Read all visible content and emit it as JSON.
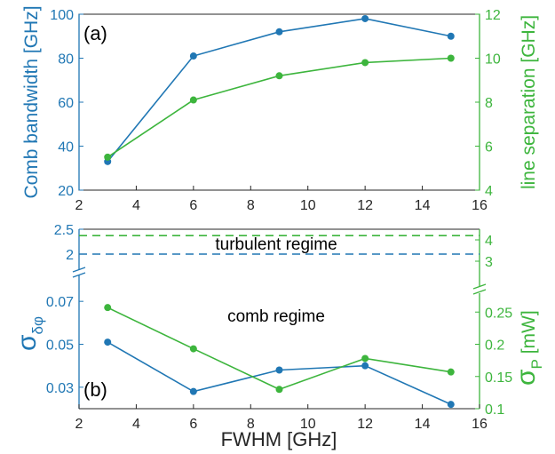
{
  "colors": {
    "blue": "#2077b4",
    "green": "#3db53d",
    "axis": "#262626",
    "blue_dash": "#2a6fbf"
  },
  "chart_data": [
    {
      "type": "line",
      "panel_label": "(a)",
      "x": [
        3,
        6,
        9,
        12,
        15
      ],
      "xlim": [
        2,
        16
      ],
      "xticks": [
        "2",
        "4",
        "6",
        "8",
        "10",
        "12",
        "14",
        "16"
      ],
      "xlabel": "",
      "ylabel_left": "Comb bandwidth [GHz]",
      "ylim_left": [
        20,
        100
      ],
      "yticks_left": [
        "20",
        "40",
        "60",
        "80",
        "100"
      ],
      "ylabel_right": "line separation [GHz]",
      "ylim_right": [
        4,
        12
      ],
      "yticks_right": [
        "4",
        "6",
        "8",
        "10",
        "12"
      ],
      "series": [
        {
          "axis": "left",
          "color": "blue",
          "values": [
            33,
            81,
            92,
            98,
            90
          ]
        },
        {
          "axis": "right",
          "color": "green",
          "values": [
            5.5,
            8.1,
            9.2,
            9.8,
            10.0
          ]
        }
      ]
    },
    {
      "type": "line",
      "panel_label": "(b)",
      "x": [
        3,
        6,
        9,
        12,
        15
      ],
      "xlim": [
        2,
        16
      ],
      "xticks": [
        "2",
        "4",
        "6",
        "8",
        "10",
        "12",
        "14",
        "16"
      ],
      "xlabel": "FWHM [GHz]",
      "ylabel_left": "σδφ",
      "ylabel_left_main": "σ",
      "ylabel_left_sub": "δφ",
      "ylim_left_lower": [
        0.02,
        0.08
      ],
      "yticks_left_lower": [
        "0.03",
        "0.05",
        "0.07"
      ],
      "ylim_left_upper": [
        1.75,
        2.5
      ],
      "yticks_left_upper": [
        "2",
        "2.5"
      ],
      "ylabel_right": "σP [mW]",
      "ylabel_right_main": "σ",
      "ylabel_right_sub": "P",
      "ylabel_right_unit": " [mW]",
      "ylim_right_lower": [
        0.1,
        0.3
      ],
      "yticks_right_lower": [
        "0.1",
        "0.15",
        "0.2",
        "0.25"
      ],
      "ylim_right_upper": [
        2.75,
        4.5
      ],
      "yticks_right_upper": [
        "3",
        "4"
      ],
      "series": [
        {
          "axis": "left",
          "color": "blue",
          "values": [
            0.051,
            0.028,
            0.038,
            0.04,
            0.022
          ]
        },
        {
          "axis": "right",
          "color": "green",
          "values": [
            0.257,
            0.193,
            0.13,
            0.178,
            0.157
          ]
        }
      ],
      "thresholds": [
        {
          "axis": "left",
          "color": "blue",
          "value": 2.0,
          "style": "dashed"
        },
        {
          "axis": "right",
          "color": "green",
          "value": 4.2,
          "style": "dashed"
        }
      ],
      "annotations": [
        "turbulent regime",
        "comb regime"
      ]
    }
  ]
}
